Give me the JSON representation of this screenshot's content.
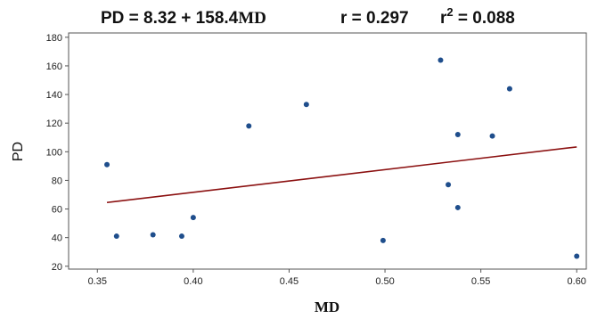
{
  "colors": {
    "point": "#1f4e8c",
    "fit_line": "#8b1010",
    "axis": "#555555",
    "text": "#111111"
  },
  "chart_data": {
    "type": "scatter",
    "title": {
      "equation": "PD = 8.32 + 158.4MD",
      "equation_prefix": "PD = 8.32 + 158.4",
      "equation_suffix": "MD",
      "r": "r = 0.297",
      "r2_symbol": "r",
      "r2_exponent": "2",
      "r2_value": " = 0.088"
    },
    "xlabel": "MD",
    "ylabel": "PD",
    "xlim": [
      0.335,
      0.605
    ],
    "ylim": [
      18,
      183
    ],
    "x_ticks": [
      0.35,
      0.4,
      0.45,
      0.5,
      0.55,
      0.6
    ],
    "x_tick_labels": [
      "0.35",
      "0.40",
      "0.45",
      "0.50",
      "0.55",
      "0.60"
    ],
    "y_ticks": [
      20,
      40,
      60,
      80,
      100,
      120,
      140,
      160,
      180
    ],
    "y_tick_labels": [
      "20",
      "40",
      "60",
      "80",
      "100",
      "120",
      "140",
      "160",
      "180"
    ],
    "grid": false,
    "points": [
      {
        "x": 0.355,
        "y": 91
      },
      {
        "x": 0.36,
        "y": 41
      },
      {
        "x": 0.379,
        "y": 42
      },
      {
        "x": 0.394,
        "y": 41
      },
      {
        "x": 0.4,
        "y": 54
      },
      {
        "x": 0.429,
        "y": 118
      },
      {
        "x": 0.459,
        "y": 133
      },
      {
        "x": 0.499,
        "y": 38
      },
      {
        "x": 0.529,
        "y": 164
      },
      {
        "x": 0.533,
        "y": 77
      },
      {
        "x": 0.538,
        "y": 112
      },
      {
        "x": 0.538,
        "y": 61
      },
      {
        "x": 0.556,
        "y": 111
      },
      {
        "x": 0.565,
        "y": 144
      },
      {
        "x": 0.6,
        "y": 27
      }
    ],
    "fit_line": {
      "intercept": 8.32,
      "slope": 158.4,
      "x_start": 0.355,
      "x_end": 0.6
    }
  }
}
